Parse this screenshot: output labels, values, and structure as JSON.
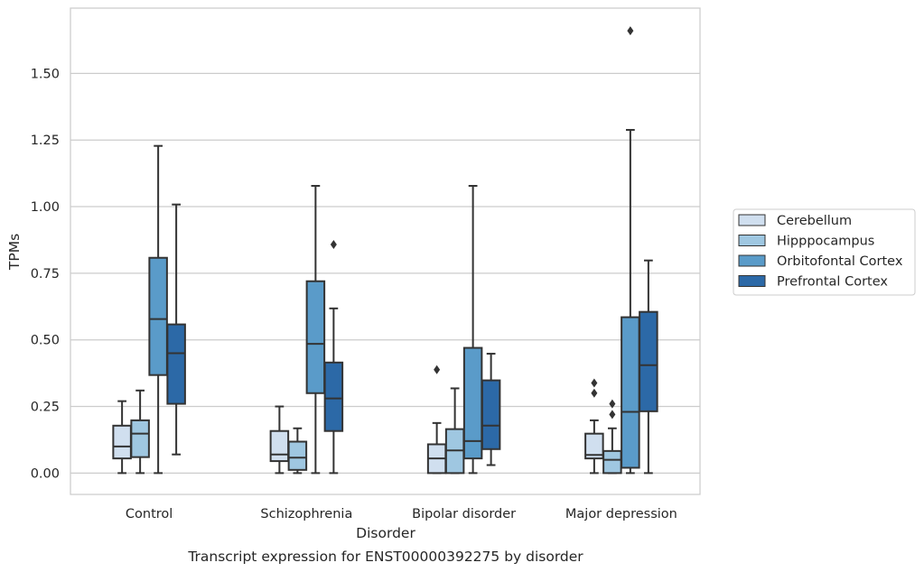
{
  "chart_data": {
    "type": "box",
    "xlabel": "Disorder",
    "ylabel": "TPMs",
    "caption": "Transcript expression for ENST00000392275 by disorder",
    "categories": [
      "Control",
      "Schizophrenia",
      "Bipolar disorder",
      "Major depression"
    ],
    "ylim": [
      -0.08,
      1.745
    ],
    "yticks": [
      0.0,
      0.25,
      0.5,
      0.75,
      1.0,
      1.25,
      1.5
    ],
    "ytick_labels": [
      "0.00",
      "0.25",
      "0.50",
      "0.75",
      "1.00",
      "1.25",
      "1.50"
    ],
    "grid": "horizontal",
    "legend_position": "right",
    "series": [
      {
        "name": "Cerebellum",
        "color": "#d0dfef",
        "boxes": [
          {
            "whisker_low": 0.0,
            "q1": 0.055,
            "median": 0.1,
            "q3": 0.178,
            "whisker_high": 0.27,
            "outliers": []
          },
          {
            "whisker_low": 0.0,
            "q1": 0.045,
            "median": 0.07,
            "q3": 0.158,
            "whisker_high": 0.25,
            "outliers": []
          },
          {
            "whisker_low": 0.0,
            "q1": 0.0,
            "median": 0.055,
            "q3": 0.108,
            "whisker_high": 0.188,
            "outliers": [
              0.388
            ]
          },
          {
            "whisker_low": 0.0,
            "q1": 0.055,
            "median": 0.068,
            "q3": 0.148,
            "whisker_high": 0.198,
            "outliers": [
              0.3,
              0.338
            ]
          }
        ]
      },
      {
        "name": "Hipppocampus",
        "color": "#9fc7e1",
        "boxes": [
          {
            "whisker_low": 0.0,
            "q1": 0.06,
            "median": 0.148,
            "q3": 0.198,
            "whisker_high": 0.31,
            "outliers": []
          },
          {
            "whisker_low": 0.0,
            "q1": 0.012,
            "median": 0.058,
            "q3": 0.118,
            "whisker_high": 0.168,
            "outliers": []
          },
          {
            "whisker_low": 0.0,
            "q1": 0.0,
            "median": 0.085,
            "q3": 0.165,
            "whisker_high": 0.318,
            "outliers": []
          },
          {
            "whisker_low": 0.0,
            "q1": 0.0,
            "median": 0.05,
            "q3": 0.083,
            "whisker_high": 0.168,
            "outliers": [
              0.22,
              0.26
            ]
          }
        ]
      },
      {
        "name": "Orbitofontal Cortex",
        "color": "#5a9bc9",
        "boxes": [
          {
            "whisker_low": 0.0,
            "q1": 0.368,
            "median": 0.578,
            "q3": 0.808,
            "whisker_high": 1.228,
            "outliers": []
          },
          {
            "whisker_low": 0.0,
            "q1": 0.3,
            "median": 0.485,
            "q3": 0.72,
            "whisker_high": 1.078,
            "outliers": []
          },
          {
            "whisker_low": 0.0,
            "q1": 0.055,
            "median": 0.12,
            "q3": 0.47,
            "whisker_high": 1.078,
            "outliers": []
          },
          {
            "whisker_low": 0.0,
            "q1": 0.02,
            "median": 0.23,
            "q3": 0.585,
            "whisker_high": 1.288,
            "outliers": [
              1.66
            ]
          }
        ]
      },
      {
        "name": "Prefrontal Cortex",
        "color": "#2c69a7",
        "boxes": [
          {
            "whisker_low": 0.07,
            "q1": 0.26,
            "median": 0.45,
            "q3": 0.558,
            "whisker_high": 1.008,
            "outliers": []
          },
          {
            "whisker_low": 0.0,
            "q1": 0.158,
            "median": 0.28,
            "q3": 0.415,
            "whisker_high": 0.618,
            "outliers": [
              0.858
            ]
          },
          {
            "whisker_low": 0.03,
            "q1": 0.09,
            "median": 0.178,
            "q3": 0.348,
            "whisker_high": 0.448,
            "outliers": []
          },
          {
            "whisker_low": 0.0,
            "q1": 0.232,
            "median": 0.405,
            "q3": 0.605,
            "whisker_high": 0.798,
            "outliers": []
          }
        ]
      }
    ]
  }
}
